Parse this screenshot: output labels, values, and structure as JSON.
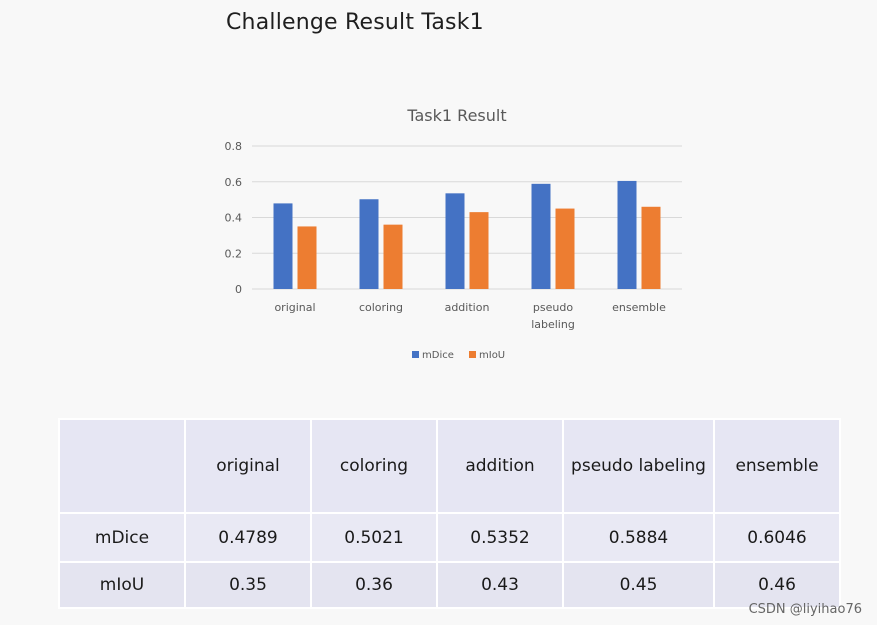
{
  "slide": {
    "title": "Challenge Result Task1"
  },
  "chart_data": {
    "type": "bar",
    "title": "Task1 Result",
    "categories": [
      "original",
      "coloring",
      "addition",
      "pseudo labeling",
      "ensemble"
    ],
    "category_lines": [
      [
        "original"
      ],
      [
        "coloring"
      ],
      [
        "addition"
      ],
      [
        "pseudo",
        "labeling"
      ],
      [
        "ensemble"
      ]
    ],
    "series": [
      {
        "name": "mDice",
        "values": [
          0.4789,
          0.5021,
          0.5352,
          0.5884,
          0.6046
        ],
        "color": "#4472c4"
      },
      {
        "name": "mIoU",
        "values": [
          0.35,
          0.36,
          0.43,
          0.45,
          0.46
        ],
        "color": "#ed7d31"
      }
    ],
    "ylim": [
      0,
      0.8
    ],
    "yticks": [
      "0",
      "0.2",
      "0.4",
      "0.6",
      "0.8"
    ],
    "grid": true,
    "legend": "bottom"
  },
  "table": {
    "headers": [
      "",
      "original",
      "coloring",
      "addition",
      "pseudo labeling",
      "ensemble"
    ],
    "rows": [
      [
        "mDice",
        "0.4789",
        "0.5021",
        "0.5352",
        "0.5884",
        "0.6046"
      ],
      [
        "mIoU",
        "0.35",
        "0.36",
        "0.43",
        "0.45",
        "0.46"
      ]
    ]
  },
  "watermark": "CSDN @liyihao76"
}
